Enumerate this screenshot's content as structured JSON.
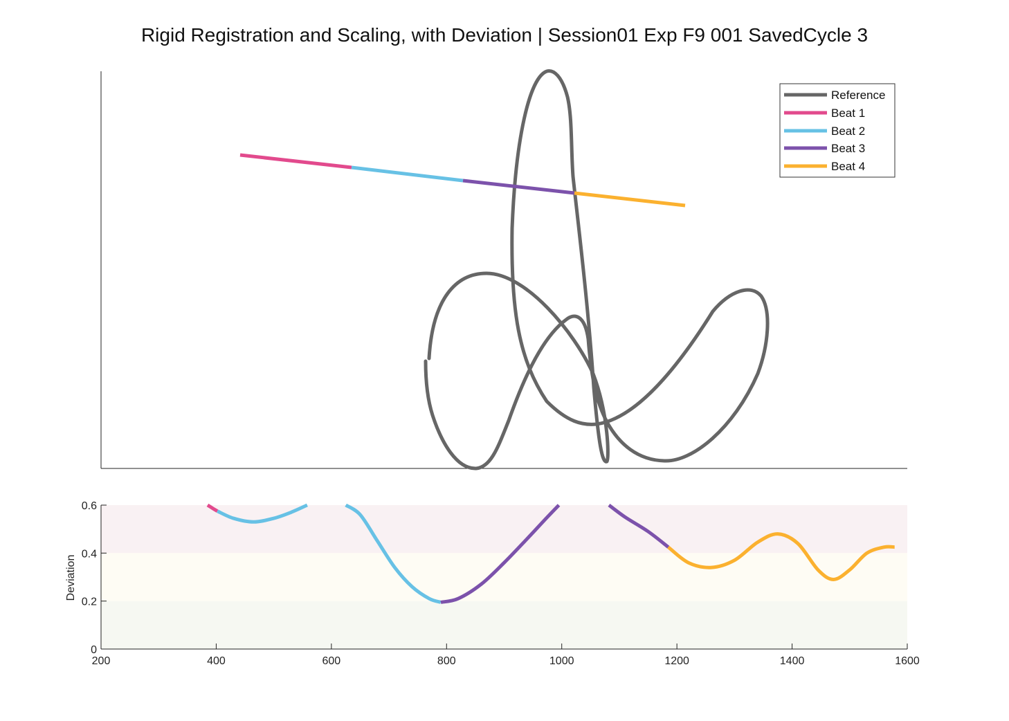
{
  "title": "Rigid Registration and Scaling, with Deviation | Session01 Exp F9 001 SavedCycle 3",
  "colors": {
    "reference": "#666666",
    "beat1": "#e24a8d",
    "beat2": "#67c1e5",
    "beat3": "#7c52ab",
    "beat4": "#fbb12f",
    "band_high": "#f9f1f3",
    "band_mid": "#fefcf4",
    "band_low": "#f6f8f2"
  },
  "chart_data": [
    {
      "type": "line",
      "panel": "trajectory",
      "legend": {
        "placement": "top-right",
        "entries": [
          "Reference",
          "Beat 1",
          "Beat 2",
          "Beat 3",
          "Beat 4"
        ]
      },
      "axes_visible": false,
      "series": [
        {
          "name": "Reference",
          "color_key": "reference"
        },
        {
          "name": "Beat 1",
          "color_key": "beat1"
        },
        {
          "name": "Beat 2",
          "color_key": "beat2"
        },
        {
          "name": "Beat 3",
          "color_key": "beat3"
        },
        {
          "name": "Beat 4",
          "color_key": "beat4"
        }
      ]
    },
    {
      "type": "line",
      "panel": "deviation",
      "ylabel": "Deviation",
      "xlabel": "",
      "xlim": [
        200,
        1600
      ],
      "ylim": [
        0,
        0.6
      ],
      "x_ticks": [
        "200",
        "400",
        "600",
        "800",
        "1000",
        "1200",
        "1400",
        "1600"
      ],
      "y_ticks": [
        "0",
        "0.2",
        "0.4",
        "0.6"
      ],
      "bands": [
        {
          "from": 0.4,
          "to": 0.6,
          "color_key": "band_high"
        },
        {
          "from": 0.2,
          "to": 0.4,
          "color_key": "band_mid"
        },
        {
          "from": 0.0,
          "to": 0.2,
          "color_key": "band_low"
        }
      ],
      "series": [
        {
          "name": "Beat 1",
          "color_key": "beat1",
          "x": [
            385,
            395,
            402
          ],
          "y": [
            0.6,
            0.585,
            0.575
          ]
        },
        {
          "name": "Beat 2",
          "color_key": "beat2",
          "x": [
            402,
            430,
            465,
            500,
            530,
            558
          ],
          "y": [
            0.575,
            0.545,
            0.53,
            0.545,
            0.57,
            0.6
          ]
        },
        {
          "name": "Beat 2",
          "color_key": "beat2",
          "x": [
            625,
            650,
            680,
            710,
            740,
            770,
            790
          ],
          "y": [
            0.6,
            0.56,
            0.45,
            0.34,
            0.26,
            0.21,
            0.195
          ]
        },
        {
          "name": "Beat 3",
          "color_key": "beat3",
          "x": [
            790,
            820,
            860,
            900,
            940,
            975,
            995
          ],
          "y": [
            0.195,
            0.21,
            0.27,
            0.36,
            0.46,
            0.55,
            0.6
          ]
        },
        {
          "name": "Beat 3",
          "color_key": "beat3",
          "x": [
            1082,
            1110,
            1150,
            1185
          ],
          "y": [
            0.6,
            0.55,
            0.49,
            0.425
          ]
        },
        {
          "name": "Beat 4",
          "color_key": "beat4",
          "x": [
            1185,
            1220,
            1260,
            1300,
            1340,
            1375,
            1410,
            1445,
            1472,
            1500,
            1530,
            1560,
            1578
          ],
          "y": [
            0.425,
            0.36,
            0.34,
            0.37,
            0.445,
            0.48,
            0.44,
            0.33,
            0.29,
            0.33,
            0.4,
            0.425,
            0.425
          ]
        }
      ]
    }
  ]
}
